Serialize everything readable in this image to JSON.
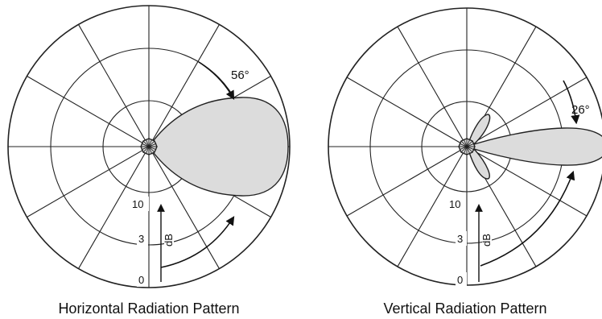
{
  "diagrams": [
    {
      "caption": "Horizontal Radiation Pattern",
      "beamwidth_label": "56°",
      "ring_labels": {
        "inner": "10",
        "middle": "3",
        "outer": "0"
      },
      "axis_label": "dB"
    },
    {
      "caption": "Vertical Radiation Pattern",
      "beamwidth_label": "26°",
      "ring_labels": {
        "inner": "10",
        "middle": "3",
        "outer": "0"
      },
      "axis_label": "dB"
    }
  ]
}
